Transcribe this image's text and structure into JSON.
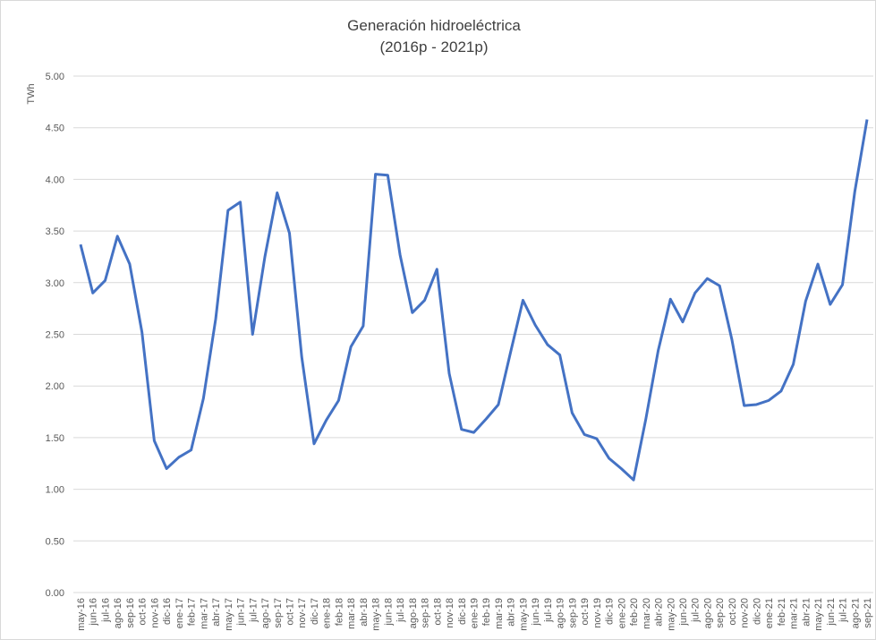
{
  "chart_data": {
    "type": "line",
    "title": "Generación hidroeléctrica",
    "subtitle": "(2016p - 2021p)",
    "y_label": "TWh",
    "categories": [
      "may-16",
      "jun-16",
      "jul-16",
      "ago-16",
      "sep-16",
      "oct-16",
      "nov-16",
      "dic-16",
      "ene-17",
      "feb-17",
      "mar-17",
      "abr-17",
      "may-17",
      "jun-17",
      "jul-17",
      "ago-17",
      "sep-17",
      "oct-17",
      "nov-17",
      "dic-17",
      "ene-18",
      "feb-18",
      "mar-18",
      "abr-18",
      "may-18",
      "jun-18",
      "jul-18",
      "ago-18",
      "sep-18",
      "oct-18",
      "nov-18",
      "dic-18",
      "ene-19",
      "feb-19",
      "mar-19",
      "abr-19",
      "may-19",
      "jun-19",
      "jul-19",
      "ago-19",
      "sep-19",
      "oct-19",
      "nov-19",
      "dic-19",
      "ene-20",
      "feb-20",
      "mar-20",
      "abr-20",
      "may-20",
      "jun-20",
      "jul-20",
      "ago-20",
      "sep-20",
      "oct-20",
      "nov-20",
      "dic-20",
      "ene-21",
      "feb-21",
      "mar-21",
      "abr-21",
      "may-21",
      "jun-21",
      "jul-21",
      "ago-21",
      "sep-21"
    ],
    "values": [
      3.37,
      2.9,
      3.02,
      3.45,
      3.18,
      2.52,
      1.47,
      1.2,
      1.31,
      1.38,
      1.88,
      2.65,
      3.7,
      3.78,
      2.5,
      3.25,
      3.87,
      3.48,
      2.28,
      1.44,
      1.67,
      1.86,
      2.38,
      2.58,
      4.05,
      4.04,
      3.27,
      2.71,
      2.83,
      3.13,
      2.12,
      1.58,
      1.55,
      1.68,
      1.82,
      2.33,
      2.83,
      2.59,
      2.4,
      2.3,
      1.74,
      1.53,
      1.49,
      1.3,
      1.2,
      1.09,
      1.68,
      2.34,
      2.84,
      2.62,
      2.9,
      3.04,
      2.97,
      2.45,
      1.81,
      1.82,
      1.86,
      1.95,
      2.21,
      2.82,
      3.18,
      2.79,
      2.98,
      3.88,
      4.58
    ],
    "color": "#4472c4",
    "ylim": [
      0,
      5
    ],
    "yticks": [
      {
        "value": 0,
        "label": "0.00"
      },
      {
        "value": 0.5,
        "label": "0.50"
      },
      {
        "value": 1,
        "label": "1.00"
      },
      {
        "value": 1.5,
        "label": "1.50"
      },
      {
        "value": 2,
        "label": "2.00"
      },
      {
        "value": 2.5,
        "label": "2.50"
      },
      {
        "value": 3,
        "label": "3.00"
      },
      {
        "value": 3.5,
        "label": "3.50"
      },
      {
        "value": 4,
        "label": "4.00"
      },
      {
        "value": 4.5,
        "label": "4.50"
      },
      {
        "value": 5,
        "label": "5.00"
      }
    ],
    "grid": true
  }
}
